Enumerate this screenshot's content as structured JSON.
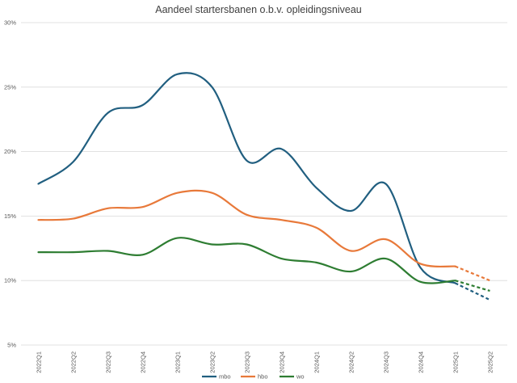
{
  "chart_data": {
    "type": "line",
    "title": "Aandeel startersbanen o.b.v. opleidingsniveau",
    "xlabel": "",
    "ylabel": "",
    "categories": [
      "2022Q1",
      "2022Q2",
      "2022Q3",
      "2022Q4",
      "2023Q1",
      "2023Q2",
      "2023Q3",
      "2023Q4",
      "2024Q1",
      "2024Q2",
      "2024Q3",
      "2024Q4",
      "2025Q1",
      "2025Q2"
    ],
    "ylim": [
      5,
      30
    ],
    "yticks": [
      5,
      10,
      15,
      20,
      25,
      30
    ],
    "ytick_labels": [
      "5%",
      "10%",
      "15%",
      "20%",
      "25%",
      "30%"
    ],
    "grid": true,
    "legend_position": "bottom",
    "series": [
      {
        "name": "mbo",
        "color": "#215f80",
        "values": [
          17.5,
          19.2,
          23.0,
          23.6,
          26.0,
          25.0,
          19.3,
          20.2,
          17.2,
          15.4,
          17.5,
          11.0,
          9.8,
          8.5
        ],
        "forecast_from_index": 12
      },
      {
        "name": "hbo",
        "color": "#e8793a",
        "values": [
          14.7,
          14.8,
          15.6,
          15.7,
          16.8,
          16.8,
          15.1,
          14.7,
          14.1,
          12.3,
          13.2,
          11.3,
          11.1,
          10.0
        ],
        "forecast_from_index": 12
      },
      {
        "name": "wo",
        "color": "#2e7d32",
        "values": [
          12.2,
          12.2,
          12.3,
          12.0,
          13.3,
          12.8,
          12.8,
          11.7,
          11.4,
          10.7,
          11.7,
          9.9,
          10.0,
          9.2
        ],
        "forecast_from_index": 12
      }
    ]
  }
}
